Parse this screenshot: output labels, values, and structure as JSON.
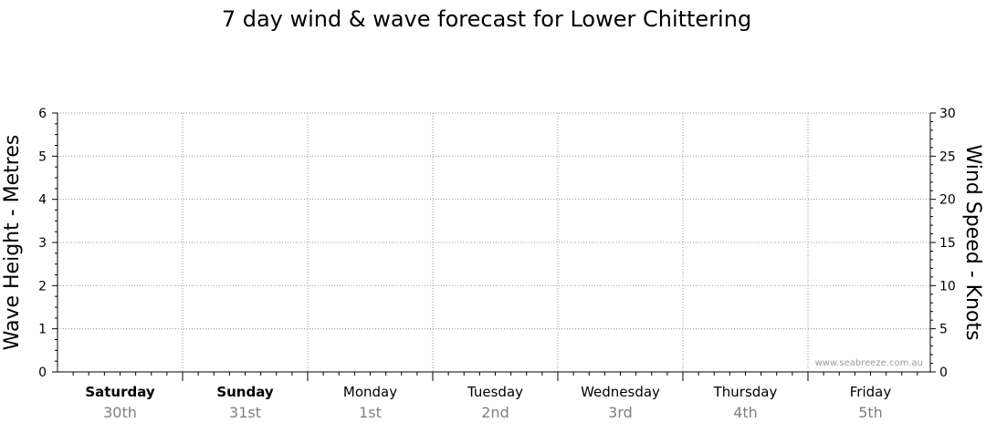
{
  "chart_data": {
    "type": "line",
    "title": "7 day wind & wave forecast for Lower Chittering",
    "ylabel_left": "Wave Height - Metres",
    "ylabel_right": "Wind Speed - Knots",
    "left_axis": {
      "ylim": [
        0,
        6
      ],
      "ticks": [
        "0",
        "1",
        "2",
        "3",
        "4",
        "5",
        "6"
      ]
    },
    "right_axis": {
      "ylim": [
        0,
        30
      ],
      "ticks": [
        "0",
        "5",
        "10",
        "15",
        "20",
        "25",
        "30"
      ]
    },
    "days": [
      {
        "name": "Saturday",
        "date": "30th",
        "bold": true
      },
      {
        "name": "Sunday",
        "date": "31st",
        "bold": true
      },
      {
        "name": "Monday",
        "date": "1st",
        "bold": false
      },
      {
        "name": "Tuesday",
        "date": "2nd",
        "bold": false
      },
      {
        "name": "Wednesday",
        "date": "3rd",
        "bold": false
      },
      {
        "name": "Thursday",
        "date": "4th",
        "bold": false
      },
      {
        "name": "Friday",
        "date": "5th",
        "bold": false
      }
    ],
    "series": [],
    "grid": true,
    "watermark": "www.seabreeze.com.au"
  }
}
